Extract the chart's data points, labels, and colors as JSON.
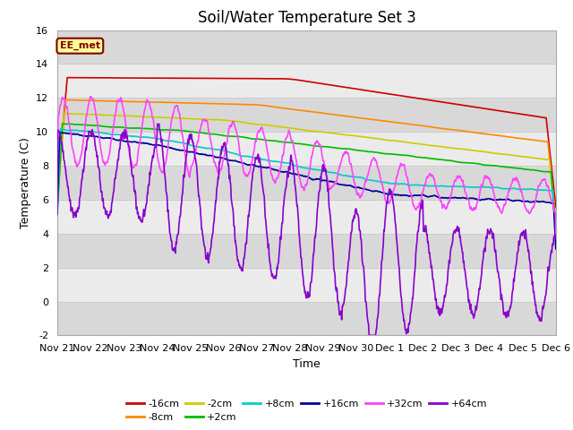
{
  "title": "Soil/Water Temperature Set 3",
  "xlabel": "Time",
  "ylabel": "Temperature (C)",
  "ylim": [
    -2,
    16
  ],
  "yticks": [
    -2,
    0,
    2,
    4,
    6,
    8,
    10,
    12,
    14,
    16
  ],
  "background_color": "#ffffff",
  "plot_bg_color": "#d8d8d8",
  "stripe_color": "#ebebeb",
  "annotation_text": "EE_met",
  "annotation_bg": "#ffff99",
  "annotation_border": "#800000",
  "series_colors": {
    "-16cm": "#cc0000",
    "-8cm": "#ff8800",
    "-2cm": "#cccc00",
    "+2cm": "#00bb00",
    "+8cm": "#00cccc",
    "+16cm": "#000099",
    "+32cm": "#ff44ff",
    "+64cm": "#8800cc"
  },
  "xtick_labels": [
    "Nov 21",
    "Nov 22",
    "Nov 23",
    "Nov 24",
    "Nov 25",
    "Nov 26",
    "Nov 27",
    "Nov 28",
    "Nov 29",
    "Nov 30",
    "Dec 1",
    "Dec 2",
    "Dec 3",
    "Dec 4",
    "Dec 5",
    "Dec 6"
  ],
  "title_fontsize": 12,
  "axis_fontsize": 9,
  "tick_fontsize": 8
}
